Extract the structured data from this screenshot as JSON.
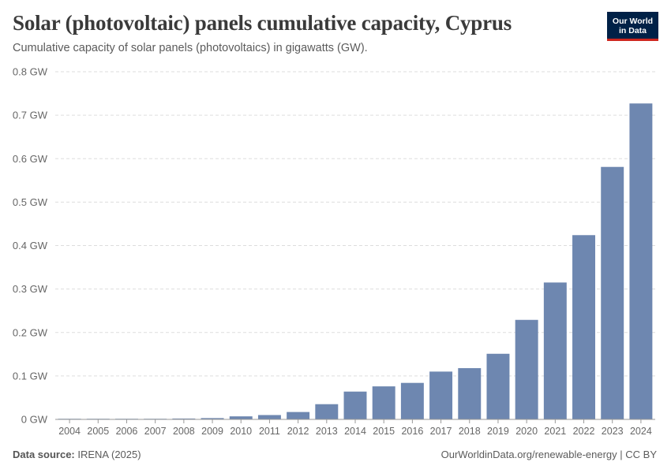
{
  "header": {
    "title": "Solar (photovoltaic) panels cumulative capacity, Cyprus",
    "subtitle": "Cumulative capacity of solar panels (photovoltaics) in gigawatts (GW)."
  },
  "logo": {
    "line1": "Our World",
    "line2": "in Data"
  },
  "footer": {
    "source_label": "Data source:",
    "source_value": "IRENA (2025)",
    "link_text": "OurWorldinData.org/renewable-energy | CC BY"
  },
  "colors": {
    "bar": "#6e87b0",
    "grid": "#dddddd",
    "axis": "#999999"
  },
  "chart_data": {
    "type": "bar",
    "title": "Solar (photovoltaic) panels cumulative capacity, Cyprus",
    "xlabel": "",
    "ylabel": "",
    "unit": "GW",
    "ylim": [
      0,
      0.8
    ],
    "yticks": [
      0,
      0.1,
      0.2,
      0.3,
      0.4,
      0.5,
      0.6,
      0.7,
      0.8
    ],
    "ytick_labels": [
      "0 GW",
      "0.1 GW",
      "0.2 GW",
      "0.3 GW",
      "0.4 GW",
      "0.5 GW",
      "0.6 GW",
      "0.7 GW",
      "0.8 GW"
    ],
    "grid": true,
    "categories": [
      "2004",
      "2005",
      "2006",
      "2007",
      "2008",
      "2009",
      "2010",
      "2011",
      "2012",
      "2013",
      "2014",
      "2015",
      "2016",
      "2017",
      "2018",
      "2019",
      "2020",
      "2021",
      "2022",
      "2023",
      "2024"
    ],
    "values": [
      0.0008,
      0.001,
      0.001,
      0.001,
      0.002,
      0.003,
      0.007,
      0.01,
      0.017,
      0.035,
      0.064,
      0.076,
      0.084,
      0.11,
      0.118,
      0.151,
      0.229,
      0.315,
      0.424,
      0.581,
      0.727
    ]
  }
}
